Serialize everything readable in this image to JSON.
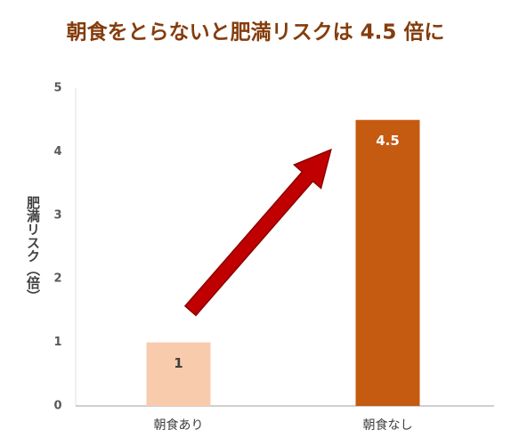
{
  "chart_data": {
    "type": "bar",
    "title": "朝食をとらないと肥満リスクは 4.5 倍に",
    "y_label": "肥満リスク（倍）",
    "categories": [
      "朝食あり",
      "朝食なし"
    ],
    "values": [
      1,
      4.5
    ],
    "colors": [
      "#f8cbad",
      "#c55a11"
    ],
    "label_colors": [
      "#404040",
      "#ffffff"
    ],
    "ylim": [
      0,
      5
    ],
    "yticks": [
      0,
      1,
      2,
      3,
      4,
      5
    ],
    "grid": false
  }
}
